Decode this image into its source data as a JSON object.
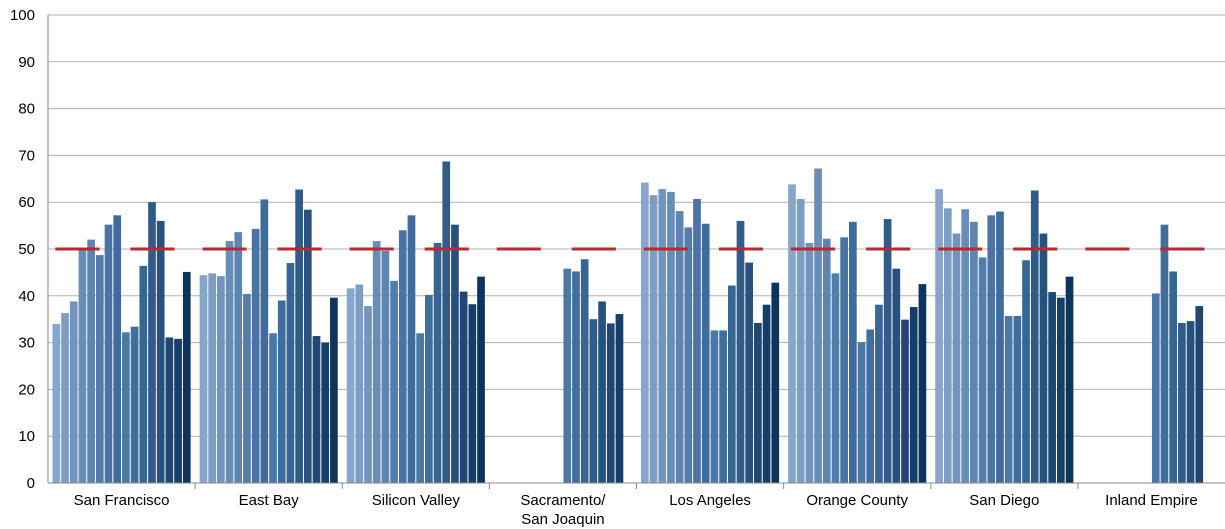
{
  "chart_data": {
    "type": "bar",
    "title": "",
    "xlabel": "",
    "ylabel": "",
    "ylim": [
      0,
      100
    ],
    "yticks": [
      0,
      10,
      20,
      30,
      40,
      50,
      60,
      70,
      80,
      90,
      100
    ],
    "grid": true,
    "legend": "none",
    "reference_line": {
      "value": 50,
      "color": "#c0272d",
      "style": "dashed"
    },
    "colors": {
      "light": "#7092be",
      "mid": "#3e6d9c",
      "dark": "#0f3b66",
      "grid": "#b0b0b0",
      "axis": "#8a8a8a"
    },
    "categories": [
      {
        "label": [
          "San Francisco"
        ],
        "values": [
          34,
          36.3,
          38.8,
          50,
          52,
          48.7,
          55.2,
          57.2,
          32.2,
          33.4,
          46.4,
          60,
          56,
          31.1,
          30.8,
          45.1
        ]
      },
      {
        "label": [
          "East Bay"
        ],
        "values": [
          44.4,
          44.8,
          44.2,
          51.7,
          53.6,
          40.4,
          54.3,
          60.6,
          32,
          39,
          47,
          62.7,
          58.4,
          31.4,
          30,
          39.6
        ]
      },
      {
        "label": [
          "Silicon Valley"
        ],
        "values": [
          41.6,
          42.4,
          37.8,
          51.7,
          49.6,
          43.2,
          54,
          57.2,
          32,
          40.2,
          51.3,
          68.7,
          55.2,
          40.9,
          38.2,
          44.1
        ]
      },
      {
        "label": [
          "Sacramento/",
          "San Joaquin"
        ],
        "values": [
          null,
          null,
          null,
          null,
          null,
          null,
          null,
          null,
          45.8,
          45.2,
          47.8,
          35,
          38.8,
          34.1,
          36.1,
          null
        ]
      },
      {
        "label": [
          "Los Angeles"
        ],
        "values": [
          64.2,
          61.5,
          62.8,
          62.2,
          58.1,
          54.6,
          60.7,
          55.4,
          32.6,
          32.6,
          42.2,
          56,
          47.1,
          34.2,
          38.1,
          42.8
        ]
      },
      {
        "label": [
          "Orange County"
        ],
        "values": [
          63.8,
          60.7,
          51.3,
          67.2,
          52.2,
          44.8,
          52.5,
          55.8,
          30.1,
          32.8,
          38.1,
          56.4,
          45.8,
          34.9,
          37.6,
          42.5
        ]
      },
      {
        "label": [
          "San Diego"
        ],
        "values": [
          62.8,
          58.7,
          53.3,
          58.5,
          55.8,
          48.2,
          57.2,
          58,
          35.7,
          35.7,
          47.6,
          62.5,
          53.3,
          40.8,
          39.6,
          44.1
        ]
      },
      {
        "label": [
          "Inland Empire"
        ],
        "values": [
          null,
          null,
          null,
          null,
          null,
          null,
          null,
          null,
          40.5,
          55.2,
          45.2,
          34.2,
          34.6,
          37.8,
          null,
          null
        ]
      }
    ]
  }
}
